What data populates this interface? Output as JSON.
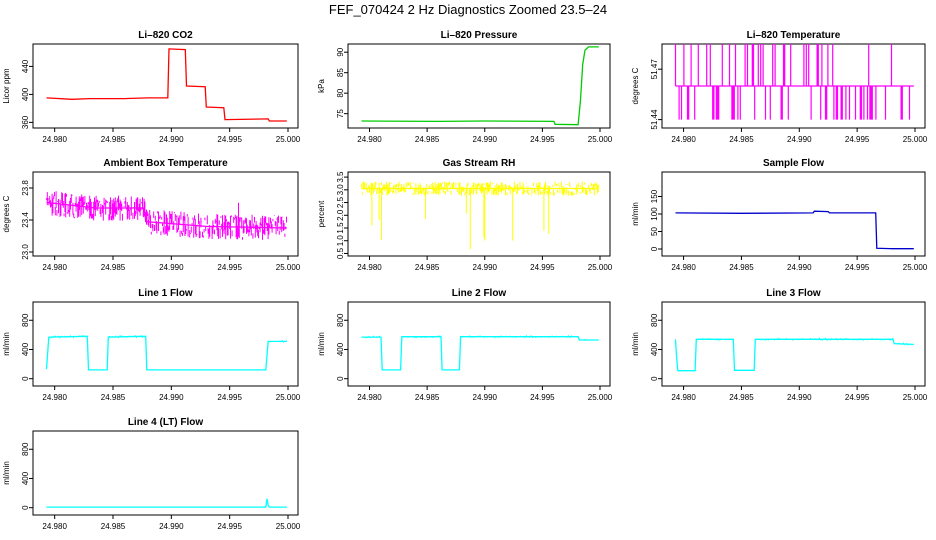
{
  "figure": {
    "title": "FEF_070424  2 Hz Diagnostics Zoomed 23.5–24"
  },
  "chart_data": [
    {
      "type": "line",
      "title": "Li–820 CO2",
      "ylabel": "Licor ppm",
      "color": "#ff0000",
      "xlim": [
        24.979,
        25.0
      ],
      "ylim": [
        352,
        472
      ],
      "x_ticks": [
        "24.980",
        "24.985",
        "24.990",
        "24.995",
        "25.000"
      ],
      "y_ticks": [
        {
          "v": 360,
          "label": "360"
        },
        {
          "v": 400,
          "label": "400"
        },
        {
          "v": 440,
          "label": "440"
        }
      ],
      "series": [
        {
          "x": [
            24.9793,
            24.9815,
            24.983,
            24.986,
            24.988,
            24.9897,
            24.9898,
            24.9912,
            24.9913,
            24.9929,
            24.993,
            24.9945,
            24.9946,
            24.9983,
            24.9984,
            24.9999
          ],
          "y": [
            395,
            393,
            394,
            394,
            395,
            395,
            465,
            464,
            412,
            411,
            382,
            381,
            364,
            365,
            362,
            362
          ]
        }
      ]
    },
    {
      "type": "line",
      "title": "Li–820 Pressure",
      "ylabel": "kPa",
      "color": "#00cc00",
      "xlim": [
        24.979,
        25.0
      ],
      "ylim": [
        71.5,
        92
      ],
      "x_ticks": [
        "24.980",
        "24.985",
        "24.990",
        "24.995",
        "25.000"
      ],
      "y_ticks": [
        {
          "v": 75,
          "label": "75"
        },
        {
          "v": 80,
          "label": "80"
        },
        {
          "v": 85,
          "label": "85"
        },
        {
          "v": 90,
          "label": "90"
        }
      ],
      "series": [
        {
          "x": [
            24.9793,
            24.986,
            24.99,
            24.996,
            24.9961,
            24.9981,
            24.9983,
            24.9985,
            24.9987,
            24.999,
            24.9999
          ],
          "y": [
            73.2,
            73.1,
            73.2,
            73.1,
            72.4,
            72.3,
            78,
            87,
            90.5,
            91.3,
            91.3
          ]
        }
      ]
    },
    {
      "type": "line",
      "title": "Li–820 Temperature",
      "ylabel": "degrees C",
      "color": "#ff00ff",
      "xlim": [
        24.979,
        25.0
      ],
      "ylim": [
        51.435,
        51.485
      ],
      "x_ticks": [
        "24.980",
        "24.985",
        "24.990",
        "24.995",
        "25.000"
      ],
      "y_ticks": [
        {
          "v": 51.44,
          "label": "51.44"
        },
        {
          "v": 51.47,
          "label": "51.47"
        }
      ],
      "series": [
        {
          "x": [
            24.9793,
            24.9999
          ],
          "y": [
            51.46,
            51.46
          ],
          "range": [
            51.44,
            51.485
          ]
        }
      ]
    },
    {
      "type": "line",
      "title": "Ambient Box Temperature",
      "ylabel": "degrees C",
      "color": "#ff00ff",
      "xlim": [
        24.979,
        25.0
      ],
      "ylim": [
        22.95,
        24.0
      ],
      "x_ticks": [
        "24.980",
        "24.985",
        "24.990",
        "24.995",
        "25.000"
      ],
      "y_ticks": [
        {
          "v": 23.0,
          "label": "23.0"
        },
        {
          "v": 23.4,
          "label": "23.4"
        },
        {
          "v": 23.8,
          "label": "23.8"
        }
      ],
      "series": [
        {
          "x": [
            24.9793,
            24.9835,
            24.9877,
            24.9878,
            24.993,
            24.9999
          ],
          "y": [
            23.62,
            23.55,
            23.55,
            23.38,
            23.32,
            23.3
          ]
        }
      ]
    },
    {
      "type": "line",
      "title": "Gas Stream RH",
      "ylabel": "percent",
      "color": "#ffff00",
      "xlim": [
        24.979,
        25.0
      ],
      "ylim": [
        0.4,
        3.7
      ],
      "x_ticks": [
        "24.980",
        "24.985",
        "24.990",
        "24.995",
        "25.000"
      ],
      "y_ticks": [
        {
          "v": 0.5,
          "label": "0.5"
        },
        {
          "v": 1.0,
          "label": "1.0"
        },
        {
          "v": 1.5,
          "label": "1.5"
        },
        {
          "v": 2.0,
          "label": "2.0"
        },
        {
          "v": 2.5,
          "label": "2.5"
        },
        {
          "v": 3.0,
          "label": "3.0"
        },
        {
          "v": 3.5,
          "label": "3.5"
        }
      ],
      "series": [
        {
          "x": [
            24.9793,
            24.9999
          ],
          "y": [
            3.05,
            3.05
          ]
        }
      ]
    },
    {
      "type": "line",
      "title": "Sample Flow",
      "ylabel": "ml/min",
      "color": "#0000cc",
      "xlim": [
        24.979,
        25.0
      ],
      "ylim": [
        -20,
        220
      ],
      "x_ticks": [
        "24.980",
        "24.985",
        "24.990",
        "24.995",
        "25.000"
      ],
      "y_ticks": [
        {
          "v": 0,
          "label": "0"
        },
        {
          "v": 50,
          "label": "50"
        },
        {
          "v": 100,
          "label": "100"
        },
        {
          "v": 150,
          "label": "150"
        }
      ],
      "series": [
        {
          "x": [
            24.9793,
            24.985,
            24.9912,
            24.9913,
            24.9925,
            24.9926,
            24.9966,
            24.9967,
            24.998,
            24.9999
          ],
          "y": [
            103,
            102,
            103,
            108,
            107,
            103,
            103,
            2,
            1,
            1
          ]
        }
      ]
    },
    {
      "type": "line",
      "title": "Line 1 Flow",
      "ylabel": "ml/min",
      "color": "#00ffff",
      "xlim": [
        24.979,
        25.0
      ],
      "ylim": [
        -100,
        1050
      ],
      "x_ticks": [
        "24.980",
        "24.985",
        "24.990",
        "24.995",
        "25.000"
      ],
      "y_ticks": [
        {
          "v": 0,
          "label": "0"
        },
        {
          "v": 400,
          "label": "400"
        },
        {
          "v": 800,
          "label": "800"
        }
      ],
      "series": [
        {
          "x": [
            24.9793,
            24.9795,
            24.9828,
            24.9829,
            24.9845,
            24.9846,
            24.9878,
            24.9879,
            24.9981,
            24.9983,
            24.9999
          ],
          "y": [
            130,
            570,
            580,
            120,
            120,
            570,
            580,
            120,
            120,
            510,
            510
          ]
        }
      ]
    },
    {
      "type": "line",
      "title": "Line 2 Flow",
      "ylabel": "ml/min",
      "color": "#00ffff",
      "xlim": [
        24.979,
        25.0
      ],
      "ylim": [
        -100,
        1050
      ],
      "x_ticks": [
        "24.980",
        "24.985",
        "24.990",
        "24.995",
        "25.000"
      ],
      "y_ticks": [
        {
          "v": 0,
          "label": "0"
        },
        {
          "v": 400,
          "label": "400"
        },
        {
          "v": 800,
          "label": "800"
        }
      ],
      "series": [
        {
          "x": [
            24.9793,
            24.981,
            24.9811,
            24.9827,
            24.9828,
            24.9862,
            24.9863,
            24.9878,
            24.9879,
            24.9981,
            24.9982,
            24.9999
          ],
          "y": [
            570,
            570,
            120,
            120,
            575,
            575,
            120,
            120,
            575,
            575,
            530,
            530
          ]
        }
      ]
    },
    {
      "type": "line",
      "title": "Line 3 Flow",
      "ylabel": "ml/min",
      "color": "#00ffff",
      "xlim": [
        24.979,
        25.0
      ],
      "ylim": [
        -100,
        1050
      ],
      "x_ticks": [
        "24.980",
        "24.985",
        "24.990",
        "24.995",
        "25.000"
      ],
      "y_ticks": [
        {
          "v": 0,
          "label": "0"
        },
        {
          "v": 400,
          "label": "400"
        },
        {
          "v": 800,
          "label": "800"
        }
      ],
      "series": [
        {
          "x": [
            24.9793,
            24.9794,
            24.9795,
            24.981,
            24.9811,
            24.9843,
            24.9844,
            24.9861,
            24.9862,
            24.9981,
            24.9982,
            24.9999
          ],
          "y": [
            530,
            300,
            110,
            110,
            540,
            540,
            115,
            115,
            540,
            540,
            480,
            470
          ]
        }
      ]
    },
    {
      "type": "line",
      "title": "Line 4 (LT) Flow",
      "ylabel": "ml/min",
      "color": "#00ffff",
      "xlim": [
        24.979,
        25.0
      ],
      "ylim": [
        -100,
        1050
      ],
      "x_ticks": [
        "24.980",
        "24.985",
        "24.990",
        "24.995",
        "25.000"
      ],
      "y_ticks": [
        {
          "v": 0,
          "label": "0"
        },
        {
          "v": 400,
          "label": "400"
        },
        {
          "v": 800,
          "label": "800"
        }
      ],
      "series": [
        {
          "x": [
            24.9793,
            24.9981,
            24.9982,
            24.9983,
            24.9984,
            24.9999
          ],
          "y": [
            8,
            8,
            120,
            30,
            8,
            8
          ]
        }
      ]
    }
  ]
}
